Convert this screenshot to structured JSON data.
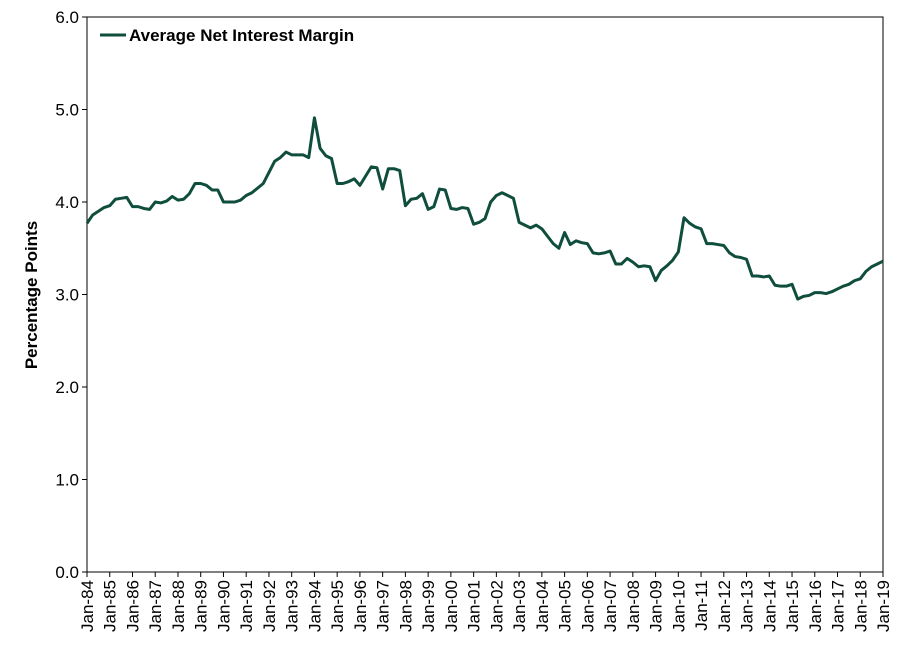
{
  "chart_data": {
    "type": "line",
    "ylabel": "Percentage Points",
    "legend": "upper left",
    "grid": false,
    "ylim": [
      0,
      6
    ],
    "yticks": [
      {
        "value": 0,
        "label": "0.0"
      },
      {
        "value": 1,
        "label": "1.0"
      },
      {
        "value": 2,
        "label": "2.0"
      },
      {
        "value": 3,
        "label": "3.0"
      },
      {
        "value": 4,
        "label": "4.0"
      },
      {
        "value": 5,
        "label": "5.0"
      },
      {
        "value": 6,
        "label": "6.0"
      }
    ],
    "categories": [
      "Jan-84",
      null,
      null,
      null,
      "Jan-85",
      null,
      null,
      null,
      "Jan-86",
      null,
      null,
      null,
      "Jan-87",
      null,
      null,
      null,
      "Jan-88",
      null,
      null,
      null,
      "Jan-89",
      null,
      null,
      null,
      "Jan-90",
      null,
      null,
      null,
      "Jan-91",
      null,
      null,
      null,
      "Jan-92",
      null,
      null,
      null,
      "Jan-93",
      null,
      null,
      null,
      "Jan-94",
      null,
      null,
      null,
      "Jan-95",
      null,
      null,
      null,
      "Jan-96",
      null,
      null,
      null,
      "Jan-97",
      null,
      null,
      null,
      "Jan-98",
      null,
      null,
      null,
      "Jan-99",
      null,
      null,
      null,
      "Jan-00",
      null,
      null,
      null,
      "Jan-01",
      null,
      null,
      null,
      "Jan-02",
      null,
      null,
      null,
      "Jan-03",
      null,
      null,
      null,
      "Jan-04",
      null,
      null,
      null,
      "Jan-05",
      null,
      null,
      null,
      "Jan-06",
      null,
      null,
      null,
      "Jan-07",
      null,
      null,
      null,
      "Jan-08",
      null,
      null,
      null,
      "Jan-09",
      null,
      null,
      null,
      "Jan-10",
      null,
      null,
      null,
      "Jan-11",
      null,
      null,
      null,
      "Jan-12",
      null,
      null,
      null,
      "Jan-13",
      null,
      null,
      null,
      "Jan-14",
      null,
      null,
      null,
      "Jan-15",
      null,
      null,
      null,
      "Jan-16",
      null,
      null,
      null,
      "Jan-17",
      null,
      null,
      null,
      "Jan-18",
      null,
      null,
      null,
      "Jan-19"
    ],
    "series": [
      {
        "name": "Average Net Interest Margin",
        "color": "#0f4d3c",
        "values": [
          3.77,
          3.86,
          3.9,
          3.94,
          3.96,
          4.03,
          4.04,
          4.05,
          3.95,
          3.95,
          3.93,
          3.92,
          4.0,
          3.99,
          4.01,
          4.06,
          4.02,
          4.03,
          4.09,
          4.2,
          4.2,
          4.18,
          4.13,
          4.13,
          4.0,
          4.0,
          4.0,
          4.02,
          4.07,
          4.1,
          4.15,
          4.2,
          4.32,
          4.44,
          4.48,
          4.54,
          4.51,
          4.51,
          4.51,
          4.48,
          4.91,
          4.58,
          4.5,
          4.47,
          4.2,
          4.2,
          4.22,
          4.25,
          4.18,
          4.28,
          4.38,
          4.37,
          4.14,
          4.36,
          4.36,
          4.34,
          3.96,
          4.03,
          4.04,
          4.09,
          3.92,
          3.95,
          4.14,
          4.13,
          3.93,
          3.92,
          3.94,
          3.93,
          3.76,
          3.78,
          3.82,
          4.0,
          4.07,
          4.1,
          4.07,
          4.04,
          3.78,
          3.75,
          3.72,
          3.75,
          3.71,
          3.63,
          3.55,
          3.5,
          3.67,
          3.54,
          3.58,
          3.56,
          3.55,
          3.45,
          3.44,
          3.45,
          3.47,
          3.33,
          3.33,
          3.39,
          3.35,
          3.3,
          3.31,
          3.3,
          3.15,
          3.26,
          3.31,
          3.37,
          3.46,
          3.83,
          3.77,
          3.73,
          3.71,
          3.55,
          3.55,
          3.54,
          3.53,
          3.45,
          3.41,
          3.4,
          3.38,
          3.2,
          3.2,
          3.19,
          3.2,
          3.1,
          3.09,
          3.09,
          3.11,
          2.95,
          2.98,
          2.99,
          3.02,
          3.02,
          3.01,
          3.03,
          3.06,
          3.09,
          3.11,
          3.15,
          3.17,
          3.25,
          3.3,
          3.33,
          3.36
        ]
      }
    ]
  }
}
